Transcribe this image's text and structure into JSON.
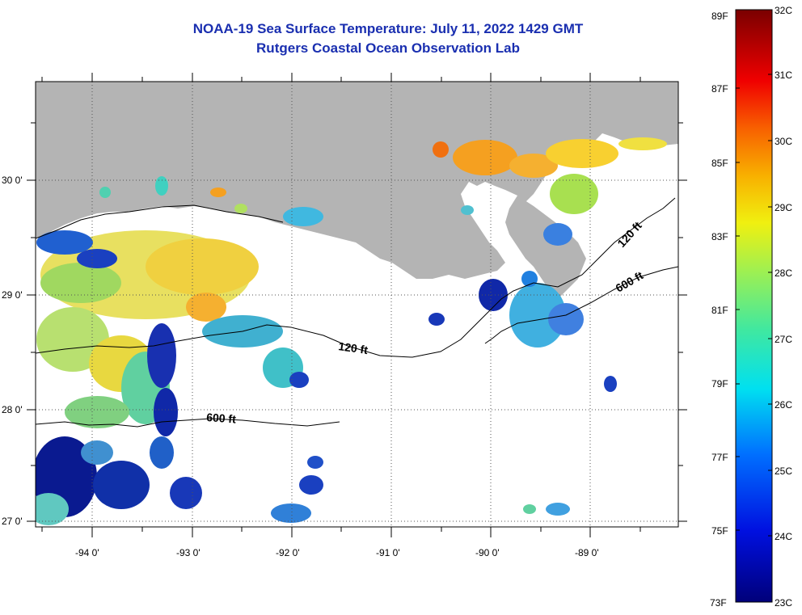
{
  "title": "NOAA-19 Sea Surface Temperature:  July 11, 2022 1429 GMT",
  "subtitle": "Rutgers Coastal Ocean Observation Lab",
  "colors": {
    "title": "#1a2fb0",
    "land": "#b4b4b4",
    "ocean_nodata": "#ffffff"
  },
  "map": {
    "lon_ticks": [
      "-94 0'",
      "-93 0'",
      "-92 0'",
      "-91 0'",
      "-90 0'",
      "-89 0'"
    ],
    "lat_ticks": [
      "30 0'",
      "29 0'",
      "28 0'",
      "27 0'"
    ],
    "contours": [
      {
        "label": "120 ft"
      },
      {
        "label": "600 ft"
      },
      {
        "label": "120 ft"
      },
      {
        "label": "600 ft"
      }
    ]
  },
  "colorbar": {
    "left_labels": [
      "89F",
      "87F",
      "85F",
      "83F",
      "81F",
      "79F",
      "77F",
      "75F",
      "73F"
    ],
    "right_labels": [
      "32C",
      "31C",
      "30C",
      "29C",
      "28C",
      "27C",
      "26C",
      "25C",
      "24C",
      "23C"
    ]
  }
}
